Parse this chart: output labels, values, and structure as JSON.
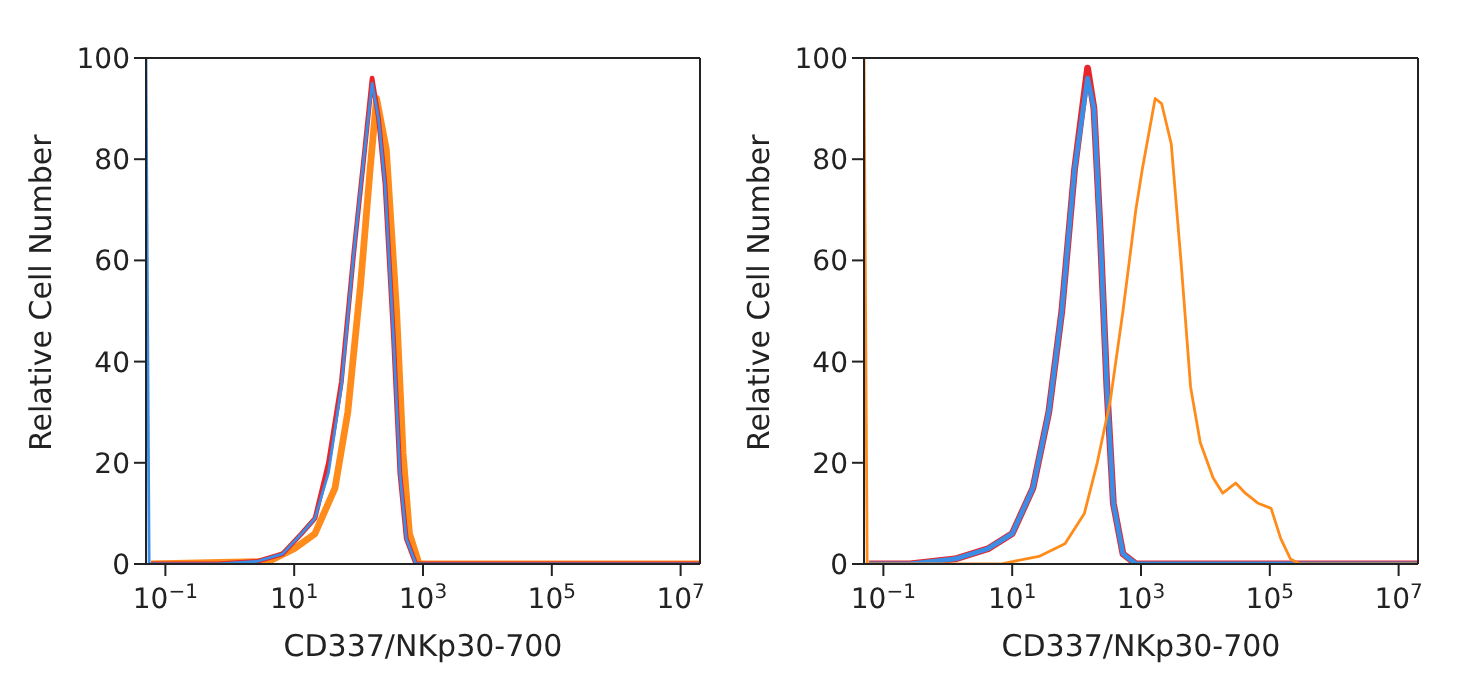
{
  "chart_data": [
    {
      "type": "line",
      "xlabel": "CD337/NKp30-700",
      "ylabel": "Relative Cell Number",
      "log": "x",
      "xlim": [
        0.05,
        20000000
      ],
      "xticks": [
        {
          "value": 0.1,
          "label": "10$^{−1}$"
        },
        {
          "value": 10,
          "label": "10$^{1}$"
        },
        {
          "value": 1000,
          "label": "10$^{3}$"
        },
        {
          "value": 100000,
          "label": "10$^{5}$"
        },
        {
          "value": 10000000,
          "label": "10$^{7}$"
        }
      ],
      "ylim": [
        0,
        100
      ],
      "yticks": [
        0,
        20,
        40,
        60,
        80,
        100
      ],
      "marker": "none",
      "line_style": "solid",
      "series": [
        {
          "color": "#ff8c1a",
          "x": [
            0.06,
            4,
            10,
            21,
            43,
            68,
            107,
            151,
            190,
            269,
            389,
            490,
            616,
            870,
            20000000
          ],
          "values": [
            0,
            0.5,
            3,
            6,
            15,
            30,
            55,
            78,
            92,
            82,
            50,
            22,
            6,
            0,
            0
          ]
        },
        {
          "color": "#e8252a",
          "x": [
            0.06,
            0.65,
            2.6,
            6.6,
            13,
            21,
            34,
            54,
            85,
            120,
            162,
            204,
            257,
            347,
            437,
            550,
            776,
            20000000
          ],
          "values": [
            0,
            0,
            0.5,
            2,
            6,
            9,
            20,
            36,
            62,
            80,
            96,
            88,
            75,
            45,
            18,
            5,
            0,
            0
          ]
        },
        {
          "color": "#3a8ee6",
          "x": [
            0.05,
            0.056,
            0.65,
            2.6,
            6.6,
            13,
            21,
            34,
            54,
            85,
            120,
            162,
            204,
            257,
            347,
            437,
            550,
            776,
            20000000
          ],
          "values": [
            100,
            0,
            0,
            0.5,
            2,
            6,
            9,
            18,
            35,
            62,
            80,
            95,
            88,
            75,
            45,
            18,
            5,
            0,
            0
          ]
        }
      ]
    },
    {
      "type": "line",
      "xlabel": "CD337/NKp30-700",
      "ylabel": "Relative Cell Number",
      "log": "x",
      "xlim": [
        0.05,
        20000000
      ],
      "xticks": [
        {
          "value": 0.1,
          "label": "10$^{−1}$"
        },
        {
          "value": 10,
          "label": "10$^{1}$"
        },
        {
          "value": 1000,
          "label": "10$^{3}$"
        },
        {
          "value": 100000,
          "label": "10$^{5}$"
        },
        {
          "value": 10000000,
          "label": "10$^{7}$"
        }
      ],
      "ylim": [
        0,
        100
      ],
      "yticks": [
        0,
        20,
        40,
        60,
        80,
        100
      ],
      "marker": "none",
      "line_style": "solid",
      "series": [
        {
          "color": "#e8252a",
          "x": [
            0.06,
            0.26,
            1.3,
            4.2,
            10,
            21,
            37,
            59,
            93,
            148,
            186,
            234,
            295,
            372,
            525,
            832,
            20000000
          ],
          "values": [
            0,
            0,
            1,
            3,
            6,
            15,
            30,
            50,
            78,
            98,
            90,
            65,
            35,
            12,
            2,
            0,
            0
          ]
        },
        {
          "color": "#3a8ee6",
          "x": [
            0.06,
            0.26,
            1.3,
            4.2,
            10,
            21,
            37,
            59,
            93,
            148,
            186,
            234,
            295,
            372,
            525,
            832,
            20000000
          ],
          "values": [
            0,
            0,
            1,
            3,
            6,
            15,
            30,
            50,
            78,
            96,
            90,
            65,
            35,
            12,
            2,
            0,
            0
          ]
        },
        {
          "color": "#ff8c1a",
          "x": [
            0.05,
            0.056,
            6.6,
            26,
            66,
            132,
            209,
            331,
            525,
            832,
            1047,
            1660,
            2089,
            2951,
            4169,
            5888,
            8318,
            13183,
            18621,
            29512,
            41687,
            66069,
            104713,
            147911,
            208930,
            295121,
            20000000
          ],
          "values": [
            100,
            0,
            0,
            1.5,
            4,
            10,
            20,
            32,
            50,
            70,
            78,
            92,
            91,
            83,
            60,
            35,
            24,
            17,
            14,
            16,
            14,
            12,
            11,
            5,
            1,
            0,
            0
          ]
        }
      ]
    }
  ]
}
